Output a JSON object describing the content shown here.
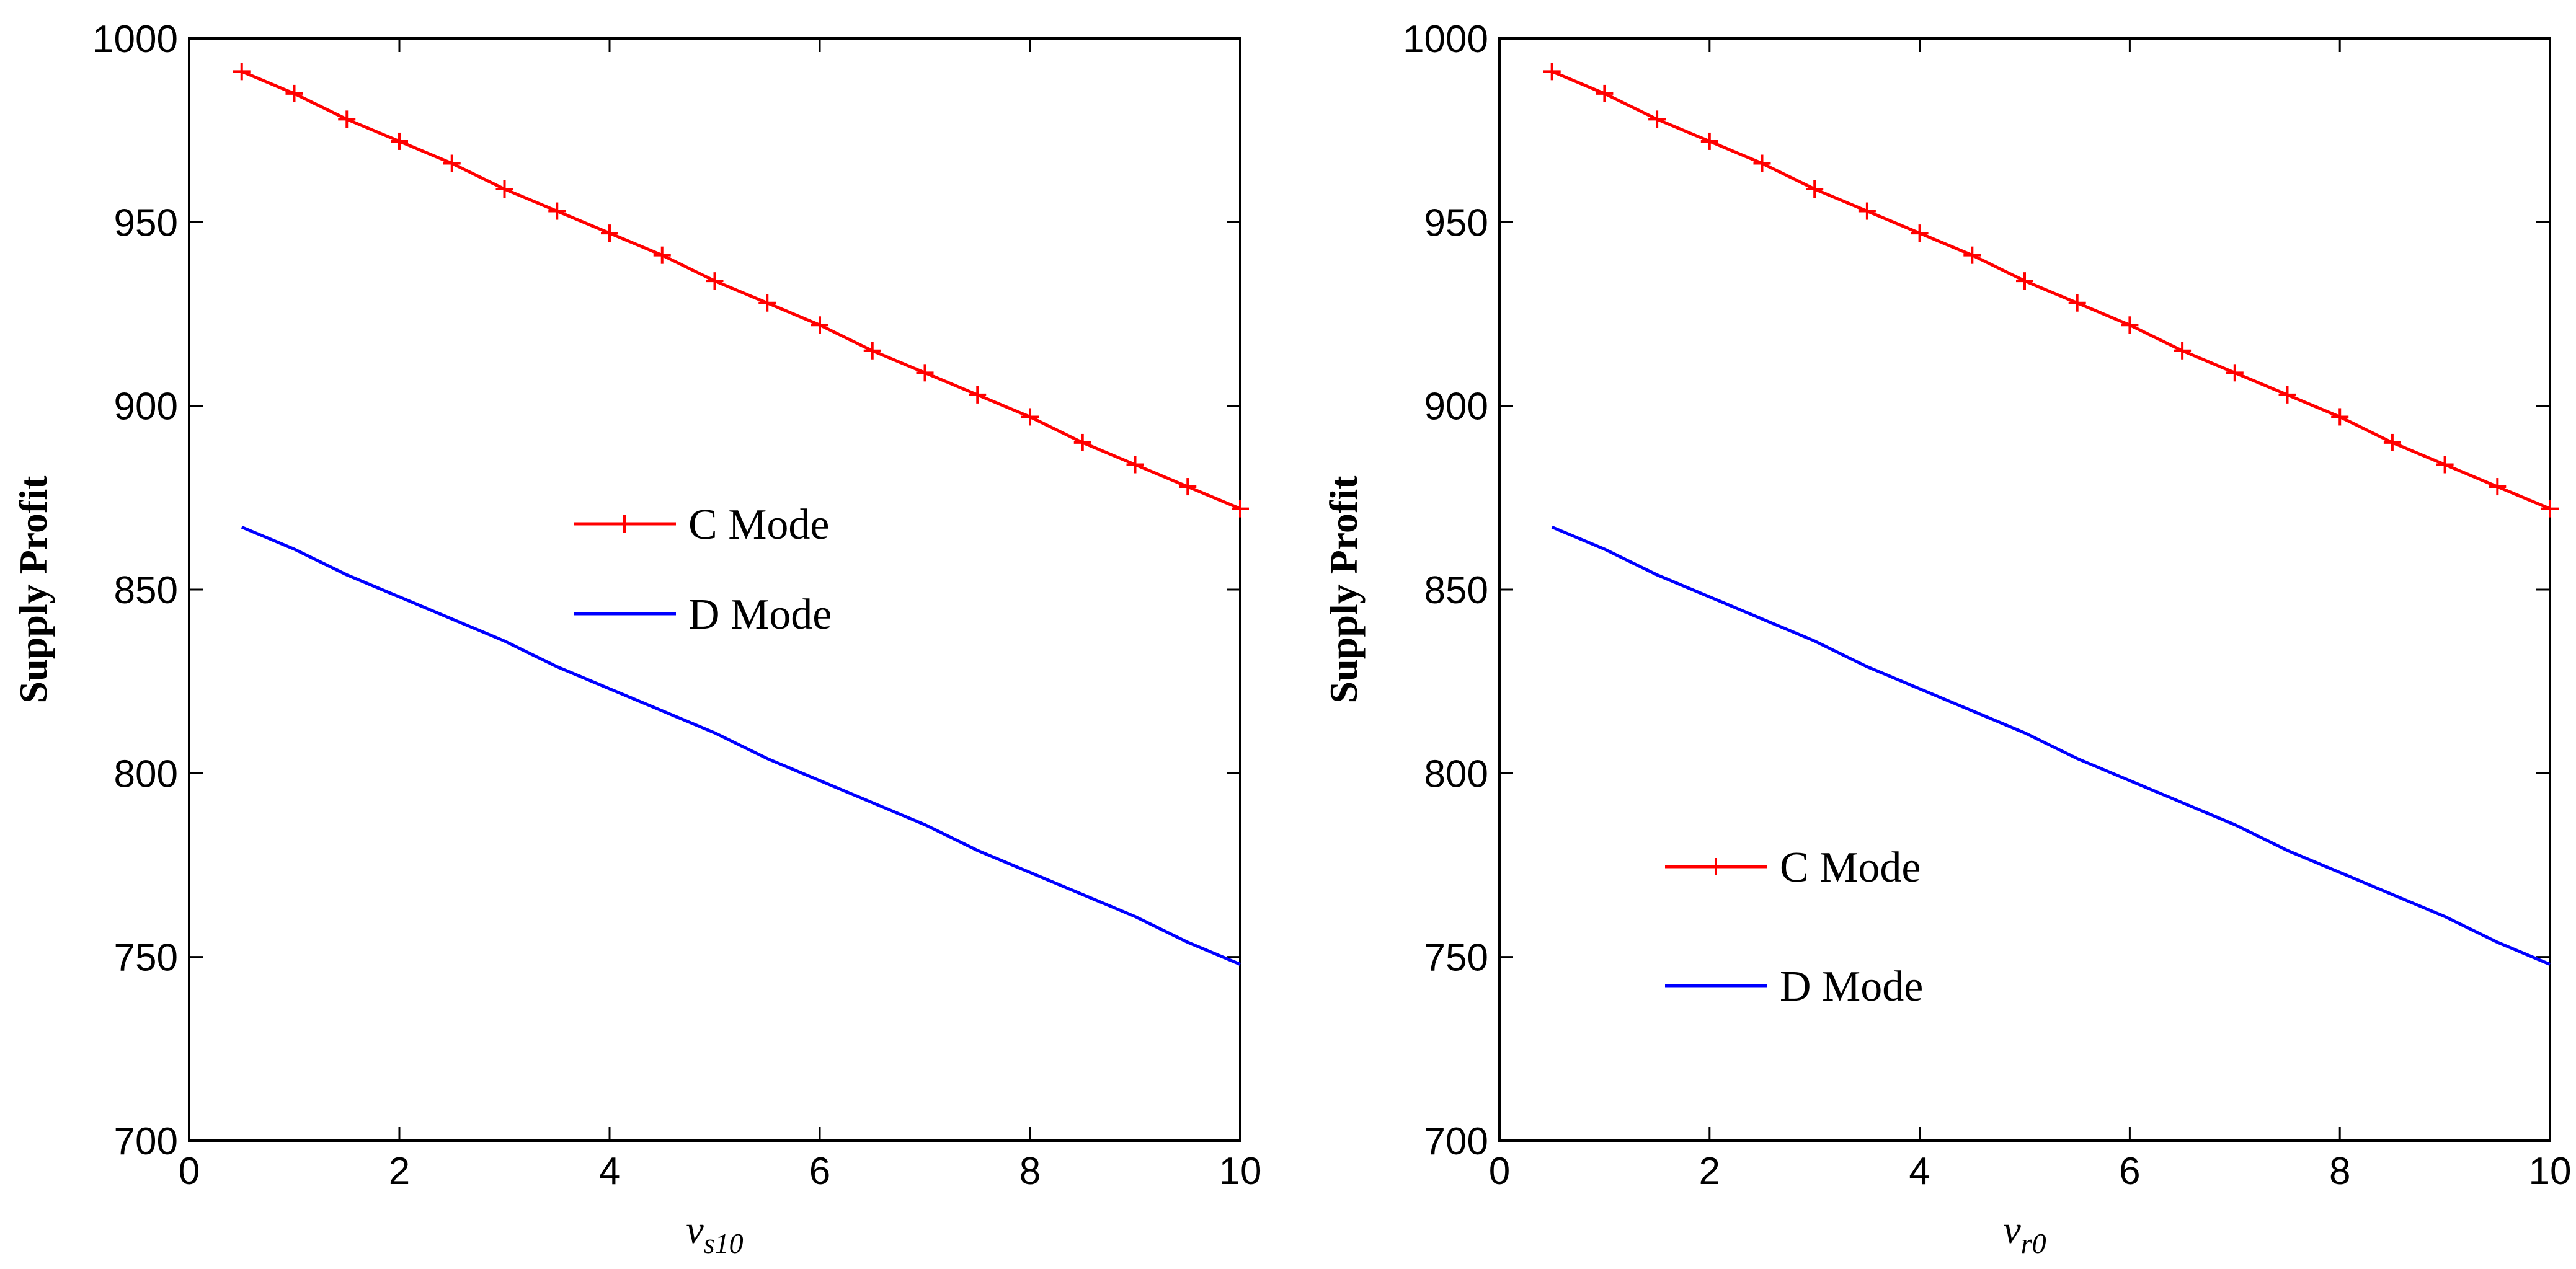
{
  "chart_data": [
    {
      "type": "line",
      "title": "",
      "xlabel": "v",
      "xlabel_sub": "s10",
      "ylabel": "Supply Profit",
      "xlim": [
        0,
        10
      ],
      "ylim": [
        700,
        1000
      ],
      "xticks": [
        "0",
        "2",
        "4",
        "6",
        "8",
        "10"
      ],
      "yticks": [
        "700",
        "750",
        "800",
        "850",
        "900",
        "950",
        "1000"
      ],
      "grid": false,
      "legend_position": "center",
      "x": [
        0.5,
        1,
        1.5,
        2,
        2.5,
        3,
        3.5,
        4,
        4.5,
        5,
        5.5,
        6,
        6.5,
        7,
        7.5,
        8,
        8.5,
        9,
        9.5,
        10
      ],
      "series": [
        {
          "name": "C Mode",
          "color": "#ff0000",
          "marker": "+",
          "values": [
            991,
            985,
            978,
            972,
            966,
            959,
            953,
            947,
            941,
            934,
            928,
            922,
            915,
            909,
            903,
            897,
            890,
            884,
            878,
            872
          ]
        },
        {
          "name": "D Mode",
          "color": "#0000ff",
          "marker": "none",
          "values": [
            867,
            861,
            854,
            848,
            842,
            836,
            829,
            823,
            817,
            811,
            804,
            798,
            792,
            786,
            779,
            773,
            767,
            761,
            754,
            748
          ]
        }
      ]
    },
    {
      "type": "line",
      "title": "",
      "xlabel": "v",
      "xlabel_sub": "r0",
      "ylabel": "Supply Profit",
      "xlim": [
        0,
        10
      ],
      "ylim": [
        700,
        1000
      ],
      "xticks": [
        "0",
        "2",
        "4",
        "6",
        "8",
        "10"
      ],
      "yticks": [
        "700",
        "750",
        "800",
        "850",
        "900",
        "950",
        "1000"
      ],
      "grid": false,
      "legend_position": "bottom-left",
      "x": [
        0.5,
        1,
        1.5,
        2,
        2.5,
        3,
        3.5,
        4,
        4.5,
        5,
        5.5,
        6,
        6.5,
        7,
        7.5,
        8,
        8.5,
        9,
        9.5,
        10
      ],
      "series": [
        {
          "name": "C Mode",
          "color": "#ff0000",
          "marker": "+",
          "values": [
            991,
            985,
            978,
            972,
            966,
            959,
            953,
            947,
            941,
            934,
            928,
            922,
            915,
            909,
            903,
            897,
            890,
            884,
            878,
            872
          ]
        },
        {
          "name": "D Mode",
          "color": "#0000ff",
          "marker": "none",
          "values": [
            867,
            861,
            854,
            848,
            842,
            836,
            829,
            823,
            817,
            811,
            804,
            798,
            792,
            786,
            779,
            773,
            767,
            761,
            754,
            748
          ]
        }
      ]
    }
  ]
}
